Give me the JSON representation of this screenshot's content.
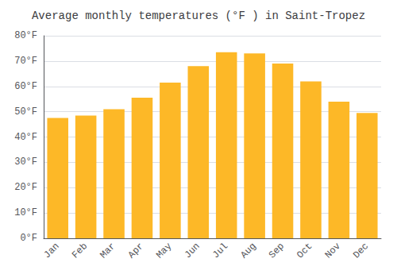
{
  "chart_data": {
    "type": "bar",
    "title": "Average monthly temperatures (°F ) in Saint-Tropez",
    "categories": [
      "Jan",
      "Feb",
      "Mar",
      "Apr",
      "May",
      "Jun",
      "Jul",
      "Aug",
      "Sep",
      "Oct",
      "Nov",
      "Dec"
    ],
    "values": [
      47.5,
      48.5,
      51.0,
      55.5,
      61.5,
      68.0,
      73.5,
      73.0,
      69.0,
      62.0,
      54.0,
      49.5
    ],
    "color": "#FDB827",
    "ylim": [
      0,
      80
    ],
    "yticks": [
      {
        "value": 0,
        "label": "0°F"
      },
      {
        "value": 10,
        "label": "10°F"
      },
      {
        "value": 20,
        "label": "20°F"
      },
      {
        "value": 30,
        "label": "30°F"
      },
      {
        "value": 40,
        "label": "40°F"
      },
      {
        "value": 50,
        "label": "50°F"
      },
      {
        "value": 60,
        "label": "60°F"
      },
      {
        "value": 70,
        "label": "70°F"
      },
      {
        "value": 80,
        "label": "80°F"
      }
    ],
    "grid": true
  }
}
